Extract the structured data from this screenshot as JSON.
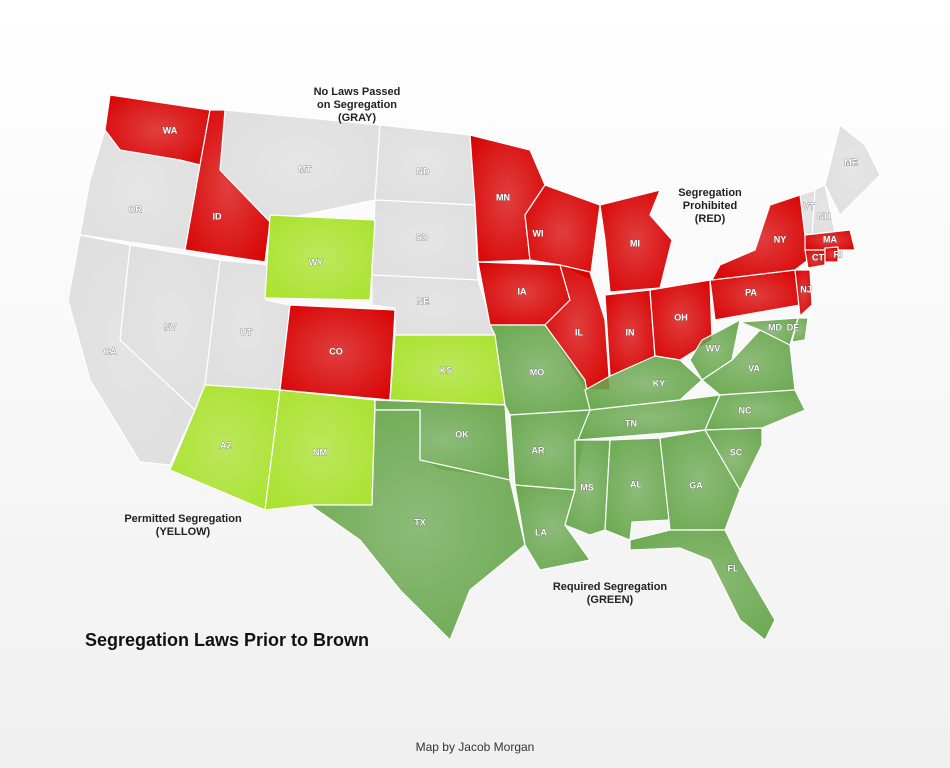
{
  "title": "Segregation Laws Prior to Brown",
  "credit": "Map by Jacob Morgan",
  "groups": [
    {
      "label": [
        "No Laws Passed",
        "on Segregation",
        "(GRAY)"
      ],
      "color": "#dedede",
      "states": [
        "OR",
        "MT",
        "ND",
        "SD",
        "NE",
        "NV",
        "UT",
        "CA",
        "VT",
        "NH",
        "ME"
      ]
    },
    {
      "label": [
        "Segregation",
        "Prohibited",
        "(RED)"
      ],
      "color": "#d80000",
      "states": [
        "WA",
        "ID",
        "CO",
        "MN",
        "WI",
        "MI",
        "IA",
        "IL",
        "IN",
        "OH",
        "PA",
        "NY",
        "MA",
        "CT",
        "RI",
        "NJ"
      ]
    },
    {
      "label": [
        "Permitted Segregation",
        "(YELLOW)"
      ],
      "color": "#a8e22a",
      "states": [
        "WY",
        "KS",
        "AZ",
        "NM"
      ]
    },
    {
      "label": [
        "Required Segregation",
        "(GREEN)"
      ],
      "color": "#6aa84f",
      "states": [
        "MO",
        "KY",
        "WV",
        "VA",
        "MD",
        "DE",
        "OK",
        "AR",
        "TN",
        "NC",
        "SC",
        "TX",
        "LA",
        "MS",
        "AL",
        "GA",
        "FL"
      ]
    }
  ]
}
